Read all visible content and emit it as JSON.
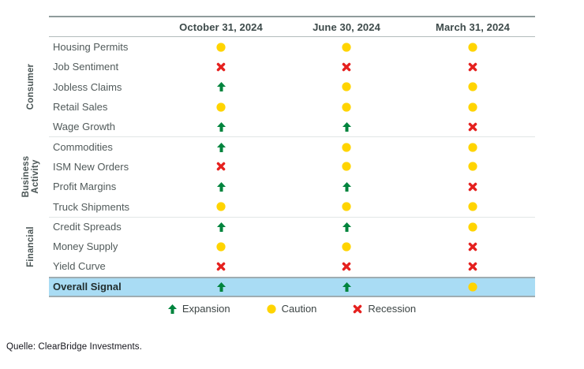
{
  "chart_data": {
    "type": "table",
    "columns": [
      "October 31, 2024",
      "June 30, 2024",
      "March 31, 2024"
    ],
    "row_groups": [
      {
        "label": "Consumer"
      },
      {
        "label": "Business\nActivity"
      },
      {
        "label": "Financial"
      }
    ],
    "rows": [
      {
        "group": "Consumer",
        "label": "Housing Permits",
        "signals": [
          "caution",
          "caution",
          "caution"
        ]
      },
      {
        "group": "Consumer",
        "label": "Job Sentiment",
        "signals": [
          "recession",
          "recession",
          "recession"
        ]
      },
      {
        "group": "Consumer",
        "label": "Jobless Claims",
        "signals": [
          "expansion",
          "caution",
          "caution"
        ]
      },
      {
        "group": "Consumer",
        "label": "Retail Sales",
        "signals": [
          "caution",
          "caution",
          "caution"
        ]
      },
      {
        "group": "Consumer",
        "label": "Wage Growth",
        "signals": [
          "expansion",
          "expansion",
          "recession"
        ]
      },
      {
        "group": "Business Activity",
        "label": "Commodities",
        "signals": [
          "expansion",
          "caution",
          "caution"
        ]
      },
      {
        "group": "Business Activity",
        "label": "ISM New Orders",
        "signals": [
          "recession",
          "caution",
          "caution"
        ]
      },
      {
        "group": "Business Activity",
        "label": "Profit Margins",
        "signals": [
          "expansion",
          "expansion",
          "recession"
        ]
      },
      {
        "group": "Business Activity",
        "label": "Truck Shipments",
        "signals": [
          "caution",
          "caution",
          "caution"
        ]
      },
      {
        "group": "Financial",
        "label": "Credit Spreads",
        "signals": [
          "expansion",
          "expansion",
          "caution"
        ]
      },
      {
        "group": "Financial",
        "label": "Money Supply",
        "signals": [
          "caution",
          "caution",
          "recession"
        ]
      },
      {
        "group": "Financial",
        "label": "Yield Curve",
        "signals": [
          "recession",
          "recession",
          "recession"
        ]
      }
    ],
    "overall_row": {
      "label": "Overall Signal",
      "signals": [
        "expansion",
        "expansion",
        "caution"
      ]
    },
    "legend": [
      {
        "signal": "expansion",
        "label": "Expansion"
      },
      {
        "signal": "caution",
        "label": "Caution"
      },
      {
        "signal": "recession",
        "label": "Recession"
      }
    ],
    "signal_colors": {
      "expansion": "#00843D",
      "caution": "#FFD400",
      "recession": "#E5201E"
    },
    "overall_row_bg": "#A9DCF4"
  },
  "source": "Quelle: ClearBridge Investments."
}
